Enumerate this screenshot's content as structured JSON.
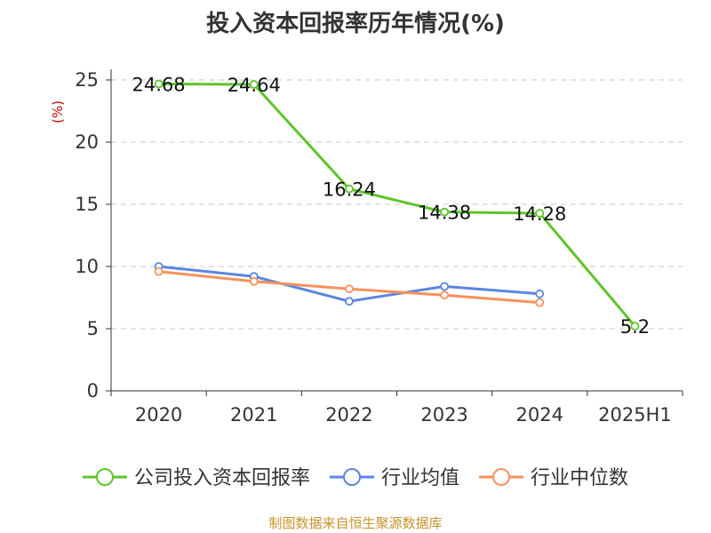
{
  "chart_data": {
    "type": "line",
    "title": "投入资本回报率历年情况(%)",
    "ylabel": "(%)",
    "categories": [
      "2020",
      "2021",
      "2022",
      "2023",
      "2024",
      "2025H1"
    ],
    "ylim": [
      0,
      25
    ],
    "yticks": [
      0,
      5,
      10,
      15,
      20,
      25
    ],
    "grid": true,
    "legend_position": "bottom",
    "series": [
      {
        "name": "公司投入资本回报率",
        "values": [
          24.68,
          24.64,
          16.24,
          14.38,
          14.28,
          5.2
        ],
        "labels": [
          "24.68",
          "24.64",
          "16.24",
          "14.38",
          "14.28",
          "5.2"
        ],
        "color": "#5ec52a"
      },
      {
        "name": "行业均值",
        "values": [
          10.0,
          9.2,
          7.2,
          8.4,
          7.8,
          null
        ],
        "color": "#5b86e0"
      },
      {
        "name": "行业中位数",
        "values": [
          9.6,
          8.8,
          8.2,
          7.7,
          7.1,
          null
        ],
        "color": "#f7915c"
      }
    ]
  },
  "source": "制图数据来自恒生聚源数据库"
}
